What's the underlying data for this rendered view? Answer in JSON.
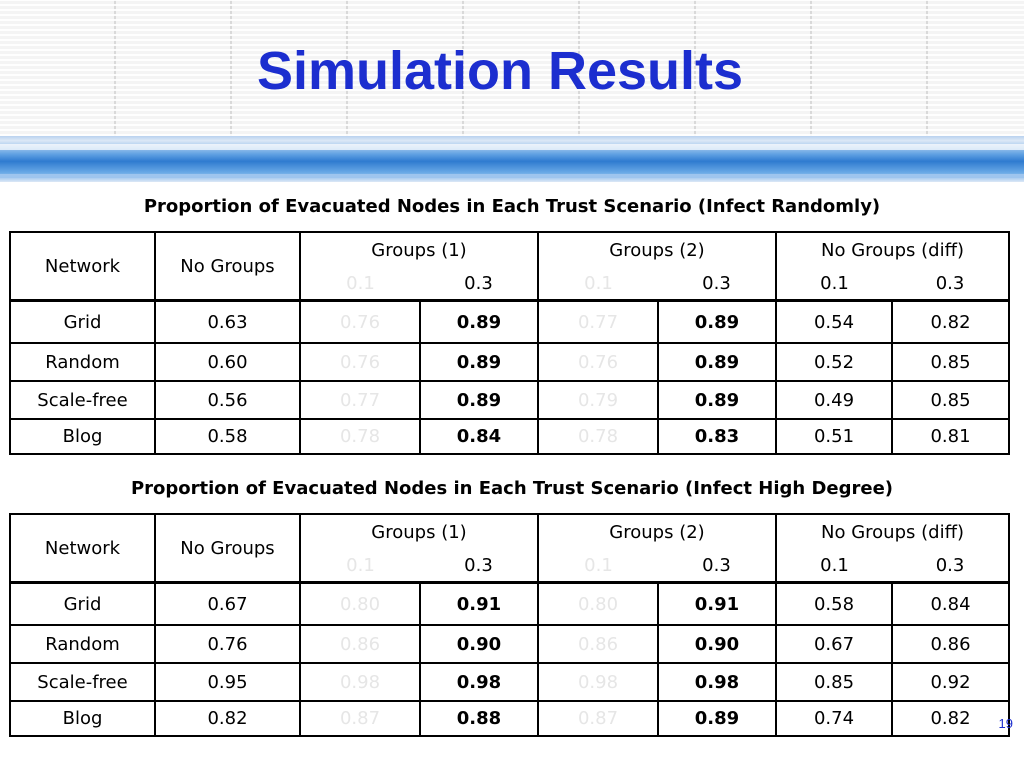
{
  "title": "Simulation Results",
  "page_number": "19",
  "colors": {
    "title": "#1c2ecf",
    "band": "#2f7bd0",
    "dim_value": "#e6e6e6"
  },
  "tables": [
    {
      "caption": "Proportion of Evacuated Nodes in Each Trust Scenario (Infect Randomly)",
      "headers": {
        "network": "Network",
        "no_groups": "No Groups",
        "groups1": "Groups (1)",
        "groups2": "Groups (2)",
        "no_groups_diff": "No Groups (diff)",
        "sub": [
          "0.1",
          "0.3",
          "0.1",
          "0.3",
          "0.1",
          "0.3"
        ]
      },
      "rows": [
        {
          "network": "Grid",
          "no_groups": "0.63",
          "g1_01": "0.76",
          "g1_03": "0.89",
          "g2_01": "0.77",
          "g2_03": "0.89",
          "diff_01": "0.54",
          "diff_03": "0.82"
        },
        {
          "network": "Random",
          "no_groups": "0.60",
          "g1_01": "0.76",
          "g1_03": "0.89",
          "g2_01": "0.76",
          "g2_03": "0.89",
          "diff_01": "0.52",
          "diff_03": "0.85"
        },
        {
          "network": "Scale-free",
          "no_groups": "0.56",
          "g1_01": "0.77",
          "g1_03": "0.89",
          "g2_01": "0.79",
          "g2_03": "0.89",
          "diff_01": "0.49",
          "diff_03": "0.85"
        },
        {
          "network": "Blog",
          "no_groups": "0.58",
          "g1_01": "0.78",
          "g1_03": "0.84",
          "g2_01": "0.78",
          "g2_03": "0.83",
          "diff_01": "0.51",
          "diff_03": "0.81"
        }
      ]
    },
    {
      "caption": "Proportion of Evacuated Nodes in Each Trust Scenario (Infect High Degree)",
      "headers": {
        "network": "Network",
        "no_groups": "No Groups",
        "groups1": "Groups (1)",
        "groups2": "Groups (2)",
        "no_groups_diff": "No Groups (diff)",
        "sub": [
          "0.1",
          "0.3",
          "0.1",
          "0.3",
          "0.1",
          "0.3"
        ]
      },
      "rows": [
        {
          "network": "Grid",
          "no_groups": "0.67",
          "g1_01": "0.80",
          "g1_03": "0.91",
          "g2_01": "0.80",
          "g2_03": "0.91",
          "diff_01": "0.58",
          "diff_03": "0.84"
        },
        {
          "network": "Random",
          "no_groups": "0.76",
          "g1_01": "0.86",
          "g1_03": "0.90",
          "g2_01": "0.86",
          "g2_03": "0.90",
          "diff_01": "0.67",
          "diff_03": "0.86"
        },
        {
          "network": "Scale-free",
          "no_groups": "0.95",
          "g1_01": "0.98",
          "g1_03": "0.98",
          "g2_01": "0.98",
          "g2_03": "0.98",
          "diff_01": "0.85",
          "diff_03": "0.92"
        },
        {
          "network": "Blog",
          "no_groups": "0.82",
          "g1_01": "0.87",
          "g1_03": "0.88",
          "g2_01": "0.87",
          "g2_03": "0.89",
          "diff_01": "0.74",
          "diff_03": "0.82"
        }
      ]
    }
  ]
}
